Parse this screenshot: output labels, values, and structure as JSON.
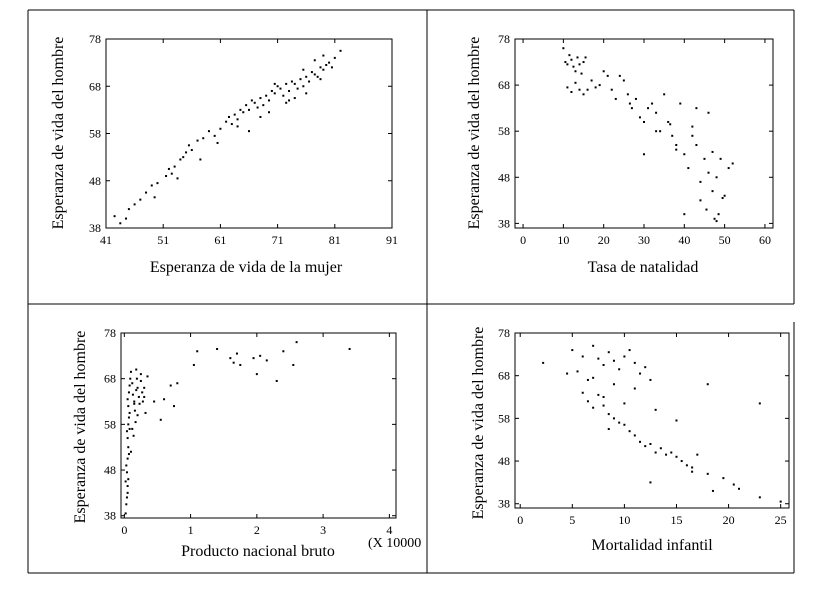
{
  "chart_data": [
    {
      "type": "scatter",
      "xlabel": "Esperanza de vida de la mujer",
      "ylabel": "Esperanza de vida del hombre",
      "xlim": [
        41,
        91
      ],
      "ylim": [
        38,
        78
      ],
      "xticks": [
        41,
        51,
        61,
        71,
        81,
        91
      ],
      "yticks": [
        38,
        48,
        58,
        68,
        78
      ],
      "points": [
        [
          42.5,
          40.5
        ],
        [
          43.5,
          39.0
        ],
        [
          44.5,
          40.0
        ],
        [
          45.0,
          42.0
        ],
        [
          46.0,
          43.0
        ],
        [
          47.0,
          44.0
        ],
        [
          48.0,
          45.5
        ],
        [
          49.0,
          47.0
        ],
        [
          50.0,
          47.5
        ],
        [
          51.5,
          49.0
        ],
        [
          52.0,
          50.5
        ],
        [
          52.5,
          49.5
        ],
        [
          53.0,
          51.0
        ],
        [
          54.0,
          52.5
        ],
        [
          54.5,
          53.0
        ],
        [
          55.0,
          54.0
        ],
        [
          55.5,
          55.5
        ],
        [
          56.0,
          54.5
        ],
        [
          57.0,
          56.5
        ],
        [
          58.0,
          57.0
        ],
        [
          59.0,
          58.5
        ],
        [
          60.0,
          57.5
        ],
        [
          61.0,
          59.0
        ],
        [
          62.0,
          60.5
        ],
        [
          62.5,
          61.5
        ],
        [
          63.0,
          60.0
        ],
        [
          63.5,
          62.0
        ],
        [
          64.0,
          61.0
        ],
        [
          64.5,
          63.0
        ],
        [
          65.0,
          62.5
        ],
        [
          65.5,
          64.0
        ],
        [
          66.0,
          63.0
        ],
        [
          66.5,
          65.0
        ],
        [
          67.0,
          64.5
        ],
        [
          67.5,
          63.5
        ],
        [
          68.0,
          65.5
        ],
        [
          68.5,
          64.0
        ],
        [
          69.0,
          66.0
        ],
        [
          69.5,
          65.0
        ],
        [
          70.0,
          67.0
        ],
        [
          70.5,
          66.5
        ],
        [
          71.0,
          68.0
        ],
        [
          71.5,
          67.5
        ],
        [
          72.0,
          66.0
        ],
        [
          72.5,
          68.5
        ],
        [
          73.0,
          67.0
        ],
        [
          73.5,
          69.0
        ],
        [
          74.0,
          68.5
        ],
        [
          74.5,
          67.5
        ],
        [
          75.0,
          69.5
        ],
        [
          75.5,
          68.0
        ],
        [
          76.0,
          70.0
        ],
        [
          76.5,
          69.0
        ],
        [
          77.0,
          71.0
        ],
        [
          77.5,
          70.5
        ],
        [
          78.0,
          70.0
        ],
        [
          78.5,
          72.0
        ],
        [
          79.0,
          71.5
        ],
        [
          79.5,
          72.5
        ],
        [
          80.0,
          73.0
        ],
        [
          80.5,
          72.0
        ],
        [
          81.0,
          74.0
        ],
        [
          82.0,
          75.5
        ],
        [
          73.0,
          65.0
        ],
        [
          74.0,
          65.5
        ],
        [
          76.0,
          66.5
        ],
        [
          72.5,
          64.5
        ],
        [
          66.0,
          58.5
        ],
        [
          60.5,
          56.0
        ],
        [
          53.5,
          48.5
        ],
        [
          49.5,
          44.5
        ],
        [
          57.5,
          52.5
        ],
        [
          64.0,
          59.5
        ],
        [
          68.0,
          61.5
        ],
        [
          75.5,
          71.5
        ],
        [
          77.5,
          73.5
        ],
        [
          78.5,
          69.5
        ],
        [
          79.0,
          74.5
        ],
        [
          70.5,
          68.5
        ],
        [
          69.5,
          62.5
        ]
      ]
    },
    {
      "type": "scatter",
      "xlabel": "Tasa de natalidad",
      "ylabel": "Esperanza de vida del hombre",
      "xlim": [
        -2,
        62
      ],
      "ylim": [
        37,
        78
      ],
      "xticks": [
        0,
        10,
        20,
        30,
        40,
        50,
        60
      ],
      "yticks": [
        38,
        48,
        58,
        68,
        78
      ],
      "points": [
        [
          10.0,
          76.0
        ],
        [
          10.5,
          73.0
        ],
        [
          11.0,
          72.5
        ],
        [
          11.5,
          74.5
        ],
        [
          12.0,
          73.5
        ],
        [
          12.5,
          72.0
        ],
        [
          13.0,
          71.0
        ],
        [
          13.5,
          74.0
        ],
        [
          14.0,
          72.5
        ],
        [
          14.5,
          70.5
        ],
        [
          15.0,
          73.0
        ],
        [
          15.5,
          74.0
        ],
        [
          11.0,
          67.5
        ],
        [
          12.0,
          66.5
        ],
        [
          13.0,
          68.5
        ],
        [
          14.0,
          67.0
        ],
        [
          15.0,
          66.0
        ],
        [
          16.0,
          67.0
        ],
        [
          17.0,
          69.0
        ],
        [
          18.0,
          67.5
        ],
        [
          19.0,
          68.0
        ],
        [
          20.0,
          71.0
        ],
        [
          21.0,
          70.0
        ],
        [
          22.0,
          67.0
        ],
        [
          23.0,
          65.0
        ],
        [
          24.0,
          70.0
        ],
        [
          25.0,
          69.0
        ],
        [
          26.0,
          66.0
        ],
        [
          27.0,
          63.0
        ],
        [
          28.0,
          65.0
        ],
        [
          29.0,
          61.0
        ],
        [
          30.0,
          60.0
        ],
        [
          31.0,
          63.0
        ],
        [
          32.0,
          64.0
        ],
        [
          33.0,
          62.0
        ],
        [
          34.0,
          58.0
        ],
        [
          35.0,
          66.0
        ],
        [
          36.0,
          60.0
        ],
        [
          37.0,
          57.0
        ],
        [
          38.0,
          55.0
        ],
        [
          39.0,
          64.0
        ],
        [
          40.0,
          53.0
        ],
        [
          41.0,
          50.0
        ],
        [
          42.0,
          57.0
        ],
        [
          43.0,
          55.0
        ],
        [
          44.0,
          47.0
        ],
        [
          45.0,
          52.0
        ],
        [
          46.0,
          49.0
        ],
        [
          47.0,
          45.0
        ],
        [
          48.0,
          48.0
        ],
        [
          49.0,
          52.0
        ],
        [
          50.0,
          44.0
        ],
        [
          51.0,
          50.0
        ],
        [
          52.0,
          51.0
        ],
        [
          46.0,
          62.0
        ],
        [
          44.0,
          43.0
        ],
        [
          45.5,
          41.0
        ],
        [
          47.5,
          39.0
        ],
        [
          48.5,
          40.0
        ],
        [
          40.0,
          40.0
        ],
        [
          30.0,
          53.0
        ],
        [
          43.0,
          63.0
        ],
        [
          47.0,
          53.5
        ],
        [
          49.5,
          43.5
        ],
        [
          48.0,
          38.5
        ],
        [
          42.0,
          59.0
        ],
        [
          38.0,
          54.0
        ],
        [
          36.5,
          59.5
        ],
        [
          26.5,
          64.0
        ],
        [
          33.0,
          58.0
        ]
      ]
    },
    {
      "type": "scatter",
      "xlabel": "Producto nacional bruto",
      "x_multiplier_label": "(X 10000",
      "ylabel": "Esperanza de vida del hombre",
      "xlim": [
        -0.05,
        4.1
      ],
      "ylim": [
        37.5,
        78
      ],
      "xticks": [
        0,
        1,
        2,
        3,
        4
      ],
      "yticks": [
        38,
        48,
        58,
        68,
        78
      ],
      "points": [
        [
          0.02,
          38.5
        ],
        [
          0.03,
          40.5
        ],
        [
          0.04,
          42.0
        ],
        [
          0.05,
          43.0
        ],
        [
          0.05,
          44.5
        ],
        [
          0.06,
          46.0
        ],
        [
          0.04,
          47.5
        ],
        [
          0.03,
          49.0
        ],
        [
          0.05,
          50.5
        ],
        [
          0.07,
          51.5
        ],
        [
          0.06,
          53.0
        ],
        [
          0.05,
          55.0
        ],
        [
          0.04,
          56.5
        ],
        [
          0.06,
          58.0
        ],
        [
          0.07,
          59.5
        ],
        [
          0.08,
          60.5
        ],
        [
          0.06,
          62.0
        ],
        [
          0.05,
          63.5
        ],
        [
          0.07,
          65.0
        ],
        [
          0.08,
          66.5
        ],
        [
          0.09,
          68.0
        ],
        [
          0.1,
          69.5
        ],
        [
          0.12,
          67.0
        ],
        [
          0.13,
          64.5
        ],
        [
          0.15,
          63.0
        ],
        [
          0.16,
          61.0
        ],
        [
          0.18,
          65.5
        ],
        [
          0.19,
          68.0
        ],
        [
          0.2,
          66.0
        ],
        [
          0.22,
          64.0
        ],
        [
          0.23,
          62.5
        ],
        [
          0.25,
          67.5
        ],
        [
          0.27,
          65.0
        ],
        [
          0.28,
          63.0
        ],
        [
          0.3,
          66.0
        ],
        [
          0.32,
          60.5
        ],
        [
          0.12,
          57.0
        ],
        [
          0.14,
          55.5
        ],
        [
          0.17,
          58.5
        ],
        [
          0.2,
          60.0
        ],
        [
          0.55,
          59.0
        ],
        [
          0.6,
          63.5
        ],
        [
          0.7,
          66.5
        ],
        [
          0.75,
          62.0
        ],
        [
          0.8,
          67.0
        ],
        [
          1.05,
          71.0
        ],
        [
          1.1,
          74.0
        ],
        [
          1.4,
          74.5
        ],
        [
          1.6,
          72.5
        ],
        [
          1.7,
          73.5
        ],
        [
          1.75,
          71.0
        ],
        [
          1.95,
          72.5
        ],
        [
          2.0,
          69.0
        ],
        [
          2.05,
          73.0
        ],
        [
          2.15,
          72.0
        ],
        [
          2.3,
          67.5
        ],
        [
          2.4,
          74.0
        ],
        [
          2.55,
          71.0
        ],
        [
          2.6,
          76.0
        ],
        [
          3.4,
          74.5
        ],
        [
          0.08,
          57.0
        ],
        [
          0.1,
          52.0
        ],
        [
          0.15,
          62.5
        ],
        [
          0.25,
          69.0
        ],
        [
          0.18,
          70.0
        ],
        [
          0.02,
          45.5
        ],
        [
          0.3,
          64.0
        ],
        [
          0.35,
          68.5
        ],
        [
          1.65,
          71.5
        ],
        [
          0.45,
          63.0
        ]
      ]
    },
    {
      "type": "scatter",
      "xlabel": "Mortalidad infantil",
      "ylabel": "Esperanza de vida del hombre",
      "xlim": [
        -0.5,
        25.8
      ],
      "ylim": [
        37,
        78
      ],
      "xticks": [
        0,
        5,
        10,
        15,
        20,
        25
      ],
      "yticks": [
        38,
        48,
        58,
        68,
        78
      ],
      "points": [
        [
          2.2,
          71.0
        ],
        [
          4.5,
          68.5
        ],
        [
          5.0,
          74.0
        ],
        [
          5.5,
          69.0
        ],
        [
          6.0,
          72.5
        ],
        [
          6.5,
          67.0
        ],
        [
          7.0,
          75.0
        ],
        [
          7.5,
          72.0
        ],
        [
          8.0,
          70.5
        ],
        [
          8.5,
          73.5
        ],
        [
          9.0,
          71.5
        ],
        [
          9.5,
          69.5
        ],
        [
          10.0,
          72.5
        ],
        [
          10.5,
          74.0
        ],
        [
          11.0,
          71.0
        ],
        [
          11.5,
          68.5
        ],
        [
          12.0,
          70.0
        ],
        [
          12.5,
          67.0
        ],
        [
          6.0,
          64.0
        ],
        [
          6.5,
          62.0
        ],
        [
          7.0,
          60.5
        ],
        [
          7.5,
          63.5
        ],
        [
          8.0,
          61.0
        ],
        [
          8.5,
          59.0
        ],
        [
          9.0,
          58.0
        ],
        [
          9.5,
          57.0
        ],
        [
          10.0,
          56.5
        ],
        [
          10.5,
          55.0
        ],
        [
          11.0,
          54.0
        ],
        [
          11.5,
          52.5
        ],
        [
          12.0,
          51.5
        ],
        [
          12.5,
          52.0
        ],
        [
          13.0,
          50.0
        ],
        [
          13.5,
          51.0
        ],
        [
          14.0,
          49.5
        ],
        [
          14.5,
          50.0
        ],
        [
          15.0,
          49.0
        ],
        [
          15.5,
          48.0
        ],
        [
          16.0,
          47.0
        ],
        [
          16.5,
          46.5
        ],
        [
          17.0,
          49.5
        ],
        [
          18.0,
          45.0
        ],
        [
          18.5,
          41.0
        ],
        [
          19.5,
          44.0
        ],
        [
          20.5,
          42.5
        ],
        [
          21.0,
          41.5
        ],
        [
          23.0,
          39.5
        ],
        [
          25.0,
          38.5
        ],
        [
          23.0,
          61.5
        ],
        [
          18.0,
          66.0
        ],
        [
          12.5,
          43.0
        ],
        [
          15.0,
          57.5
        ],
        [
          11.0,
          65.0
        ],
        [
          9.0,
          66.0
        ],
        [
          8.0,
          63.0
        ],
        [
          7.0,
          67.5
        ],
        [
          10.0,
          61.5
        ],
        [
          13.0,
          60.0
        ],
        [
          8.5,
          55.5
        ],
        [
          16.5,
          45.5
        ]
      ]
    }
  ]
}
